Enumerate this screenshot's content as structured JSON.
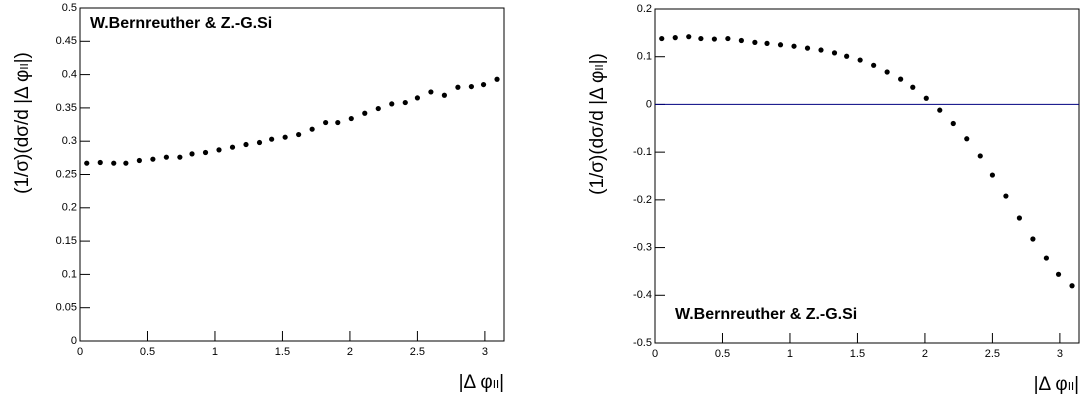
{
  "chart_data": [
    {
      "type": "scatter",
      "ylabel": "(1/σ)(dσ/d |Δ φₗₗ|)",
      "xlabel": "|Δ φₗₗ|",
      "annotation": "W.Bernreuther & Z.-G.Si",
      "annotation_corner": "top-left",
      "x": [
        0.05,
        0.15,
        0.25,
        0.34,
        0.44,
        0.54,
        0.64,
        0.74,
        0.83,
        0.93,
        1.03,
        1.13,
        1.23,
        1.33,
        1.42,
        1.52,
        1.62,
        1.72,
        1.82,
        1.91,
        2.01,
        2.11,
        2.21,
        2.31,
        2.41,
        2.5,
        2.6,
        2.7,
        2.8,
        2.9,
        2.99,
        3.09
      ],
      "values": [
        0.267,
        0.268,
        0.267,
        0.267,
        0.271,
        0.273,
        0.276,
        0.276,
        0.281,
        0.283,
        0.287,
        0.291,
        0.295,
        0.298,
        0.303,
        0.306,
        0.31,
        0.318,
        0.328,
        0.328,
        0.334,
        0.342,
        0.349,
        0.356,
        0.358,
        0.365,
        0.374,
        0.369,
        0.381,
        0.382,
        0.385,
        0.393
      ],
      "color": "#000000",
      "xlim": [
        0,
        3.1416
      ],
      "xticks": [
        0,
        0.5,
        1,
        1.5,
        2,
        2.5,
        3
      ],
      "ylim": [
        0,
        0.5
      ],
      "yticks": [
        0,
        0.05,
        0.1,
        0.15,
        0.2,
        0.25,
        0.3,
        0.35,
        0.4,
        0.45,
        0.5
      ]
    },
    {
      "type": "scatter",
      "ylabel": "(1/σ)(dσ/d |Δ φₗₗ|)",
      "xlabel": "|Δ φₗₗ|",
      "annotation": "W.Bernreuther & Z.-G.Si",
      "annotation_corner": "bottom-left",
      "x": [
        0.05,
        0.15,
        0.25,
        0.34,
        0.44,
        0.54,
        0.64,
        0.74,
        0.83,
        0.93,
        1.03,
        1.13,
        1.23,
        1.33,
        1.42,
        1.52,
        1.62,
        1.72,
        1.82,
        1.91,
        2.01,
        2.11,
        2.21,
        2.31,
        2.41,
        2.5,
        2.6,
        2.7,
        2.8,
        2.9,
        2.99,
        3.09
      ],
      "values": [
        0.138,
        0.14,
        0.142,
        0.138,
        0.137,
        0.138,
        0.134,
        0.13,
        0.128,
        0.125,
        0.122,
        0.118,
        0.114,
        0.108,
        0.101,
        0.093,
        0.082,
        0.068,
        0.053,
        0.036,
        0.013,
        -0.012,
        -0.04,
        -0.072,
        -0.108,
        -0.148,
        -0.192,
        -0.238,
        -0.282,
        -0.322,
        -0.356,
        -0.38
      ],
      "color": "#000000",
      "hline": 0,
      "hline_color": "#000080",
      "xlim": [
        0,
        3.1416
      ],
      "xticks": [
        0,
        0.5,
        1,
        1.5,
        2,
        2.5,
        3
      ],
      "ylim": [
        -0.5,
        0.2
      ],
      "yticks": [
        -0.5,
        -0.4,
        -0.3,
        -0.2,
        -0.1,
        0,
        0.1,
        0.2
      ]
    }
  ]
}
